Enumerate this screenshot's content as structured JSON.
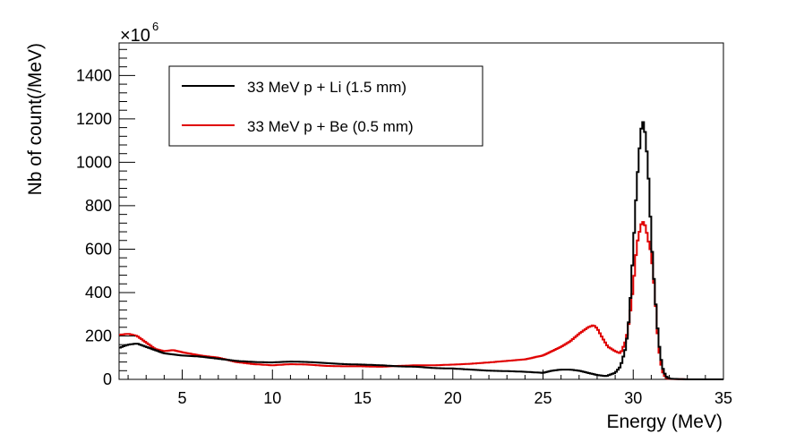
{
  "chart_data": {
    "type": "line",
    "style": "step-histogram",
    "title": "",
    "xlabel": "Energy (MeV)",
    "ylabel": "Nb of count(/MeV)",
    "y_multiplier_label": "×10",
    "y_multiplier_exponent": "6",
    "xlim": [
      1.5,
      35
    ],
    "ylim": [
      0,
      1550
    ],
    "x_ticks": [
      5,
      10,
      15,
      20,
      25,
      30,
      35
    ],
    "x_tick_labels": [
      "5",
      "10",
      "15",
      "20",
      "25",
      "30",
      "35"
    ],
    "y_ticks": [
      0,
      200,
      400,
      600,
      800,
      1000,
      1200,
      1400
    ],
    "y_tick_labels": [
      "0",
      "200",
      "400",
      "600",
      "800",
      "1000",
      "1200",
      "1400"
    ],
    "grid": false,
    "legend_position": "top-left",
    "series": [
      {
        "name": "33 MeV p + Li (1.5 mm)",
        "color": "#000000",
        "x": [
          1.5,
          2.0,
          2.5,
          3.0,
          3.5,
          4.0,
          4.5,
          5.0,
          6.0,
          7.0,
          8.0,
          9.0,
          10.0,
          11.0,
          12.0,
          13.0,
          14.0,
          15.0,
          16.0,
          17.0,
          18.0,
          19.0,
          20.0,
          21.0,
          22.0,
          23.0,
          24.0,
          25.0,
          25.5,
          26.0,
          26.5,
          27.0,
          27.5,
          28.0,
          28.5,
          29.0,
          29.3,
          29.6,
          29.8,
          30.0,
          30.2,
          30.4,
          30.5,
          30.6,
          30.7,
          30.8,
          30.9,
          31.0,
          31.2,
          31.4,
          31.6,
          31.8,
          32.0,
          33.0,
          35.0
        ],
        "y": [
          145,
          160,
          165,
          150,
          135,
          120,
          115,
          110,
          105,
          95,
          85,
          80,
          78,
          82,
          80,
          75,
          70,
          68,
          65,
          60,
          58,
          52,
          50,
          45,
          40,
          38,
          35,
          30,
          40,
          45,
          45,
          40,
          30,
          20,
          15,
          30,
          60,
          150,
          300,
          600,
          900,
          1120,
          1190,
          1180,
          1100,
          1000,
          850,
          650,
          400,
          180,
          60,
          15,
          3,
          0,
          0
        ]
      },
      {
        "name": "33 MeV p + Be (0.5 mm)",
        "color": "#e00000",
        "x": [
          1.5,
          2.0,
          2.5,
          3.0,
          3.5,
          4.0,
          4.5,
          5.0,
          6.0,
          7.0,
          8.0,
          9.0,
          10.0,
          11.0,
          12.0,
          13.0,
          14.0,
          15.0,
          16.0,
          17.0,
          18.0,
          19.0,
          20.0,
          21.0,
          22.0,
          23.0,
          24.0,
          25.0,
          25.5,
          26.0,
          26.5,
          27.0,
          27.5,
          27.8,
          28.0,
          28.3,
          28.6,
          29.0,
          29.3,
          29.6,
          29.8,
          30.0,
          30.2,
          30.4,
          30.5,
          30.6,
          30.7,
          30.8,
          30.9,
          31.0,
          31.2,
          31.4,
          31.6,
          31.8,
          32.0,
          33.0,
          35.0
        ],
        "y": [
          205,
          210,
          200,
          170,
          140,
          130,
          135,
          125,
          110,
          100,
          80,
          70,
          65,
          70,
          68,
          62,
          60,
          60,
          58,
          62,
          65,
          65,
          68,
          72,
          78,
          85,
          92,
          110,
          130,
          150,
          175,
          210,
          240,
          250,
          235,
          190,
          150,
          130,
          120,
          180,
          280,
          430,
          620,
          700,
          730,
          720,
          700,
          650,
          620,
          580,
          400,
          150,
          40,
          8,
          2,
          0,
          0
        ]
      }
    ]
  }
}
